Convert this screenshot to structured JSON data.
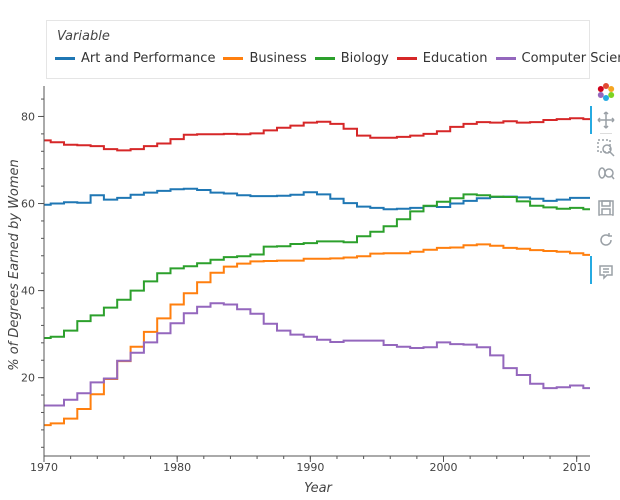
{
  "legend": {
    "title": "Variable",
    "items": [
      {
        "label": "Art and Performance",
        "color": "#1f77b4"
      },
      {
        "label": "Business",
        "color": "#ff7f0e"
      },
      {
        "label": "Biology",
        "color": "#2ca02c"
      },
      {
        "label": "Education",
        "color": "#d62728"
      },
      {
        "label": "Computer Science",
        "color": "#9467bd"
      }
    ]
  },
  "toolbar": {
    "tools": [
      {
        "name": "bokeh-logo-icon"
      },
      {
        "name": "pan-icon"
      },
      {
        "name": "box-zoom-icon"
      },
      {
        "name": "wheel-zoom-icon"
      },
      {
        "name": "save-icon"
      },
      {
        "name": "reset-icon"
      },
      {
        "name": "hover-icon"
      }
    ]
  },
  "chart_data": {
    "type": "line",
    "step": true,
    "xlabel": "Year",
    "ylabel": "% of Degrees Earned by Women",
    "xlim": [
      1970,
      2011
    ],
    "ylim": [
      2,
      87
    ],
    "x_ticks": [
      1970,
      1980,
      1990,
      2000,
      2010
    ],
    "y_ticks": [
      20,
      40,
      60,
      80
    ],
    "grid": false,
    "legend_position": "top",
    "x": [
      1970,
      1971,
      1972,
      1973,
      1974,
      1975,
      1976,
      1977,
      1978,
      1979,
      1980,
      1981,
      1982,
      1983,
      1984,
      1985,
      1986,
      1987,
      1988,
      1989,
      1990,
      1991,
      1992,
      1993,
      1994,
      1995,
      1996,
      1997,
      1998,
      1999,
      2000,
      2001,
      2002,
      2003,
      2004,
      2005,
      2006,
      2007,
      2008,
      2009,
      2010,
      2011
    ],
    "series": [
      {
        "name": "Art and Performance",
        "color": "#1f77b4",
        "values": [
          59.7,
          60.0,
          60.3,
          60.2,
          61.9,
          60.9,
          61.3,
          62.0,
          62.5,
          62.9,
          63.3,
          63.4,
          63.1,
          62.5,
          62.3,
          61.9,
          61.7,
          61.7,
          61.8,
          62.0,
          62.6,
          62.1,
          61.1,
          60.1,
          59.3,
          59.0,
          58.7,
          58.8,
          59.0,
          59.4,
          59.2,
          60.0,
          60.6,
          61.2,
          61.5,
          61.6,
          61.4,
          61.1,
          60.6,
          60.9,
          61.3,
          61.3
        ]
      },
      {
        "name": "Business",
        "color": "#ff7f0e",
        "values": [
          9.1,
          9.5,
          10.6,
          12.8,
          16.2,
          19.7,
          23.8,
          27.1,
          30.5,
          33.6,
          36.8,
          39.4,
          41.9,
          44.1,
          45.5,
          46.2,
          46.7,
          46.8,
          46.9,
          46.9,
          47.3,
          47.3,
          47.4,
          47.6,
          47.9,
          48.5,
          48.6,
          48.6,
          48.9,
          49.4,
          49.8,
          49.9,
          50.4,
          50.6,
          50.3,
          49.8,
          49.6,
          49.3,
          49.1,
          48.9,
          48.6,
          48.2
        ]
      },
      {
        "name": "Biology",
        "color": "#2ca02c",
        "values": [
          29.1,
          29.4,
          30.8,
          33.0,
          34.3,
          36.1,
          37.9,
          40.0,
          42.1,
          44.0,
          45.1,
          45.6,
          46.3,
          47.1,
          47.7,
          47.9,
          48.3,
          50.1,
          50.2,
          50.7,
          50.9,
          51.3,
          51.3,
          51.1,
          52.5,
          53.5,
          54.8,
          56.4,
          58.2,
          59.5,
          60.4,
          61.2,
          62.1,
          61.9,
          61.6,
          61.5,
          60.5,
          59.5,
          59.1,
          58.8,
          59.0,
          58.7
        ]
      },
      {
        "name": "Education",
        "color": "#d62728",
        "values": [
          74.5,
          74.1,
          73.5,
          73.4,
          73.2,
          72.5,
          72.2,
          72.5,
          73.2,
          73.8,
          74.8,
          75.8,
          75.9,
          75.9,
          76.0,
          75.9,
          76.1,
          76.8,
          77.4,
          77.9,
          78.6,
          78.8,
          78.3,
          77.2,
          75.6,
          75.1,
          75.1,
          75.3,
          75.6,
          76.0,
          76.6,
          77.6,
          78.3,
          78.7,
          78.6,
          78.9,
          78.6,
          78.7,
          79.2,
          79.4,
          79.6,
          79.4
        ]
      },
      {
        "name": "Computer Science",
        "color": "#9467bd",
        "values": [
          13.6,
          13.6,
          14.9,
          16.4,
          18.9,
          19.8,
          23.9,
          25.7,
          28.1,
          30.2,
          32.5,
          34.8,
          36.3,
          37.1,
          36.8,
          35.7,
          34.7,
          32.4,
          30.8,
          29.9,
          29.4,
          28.7,
          28.2,
          28.5,
          28.5,
          28.5,
          27.5,
          27.1,
          26.8,
          27.0,
          28.1,
          27.7,
          27.6,
          27.0,
          25.1,
          22.2,
          20.6,
          18.6,
          17.6,
          17.8,
          18.2,
          17.6
        ]
      }
    ]
  }
}
